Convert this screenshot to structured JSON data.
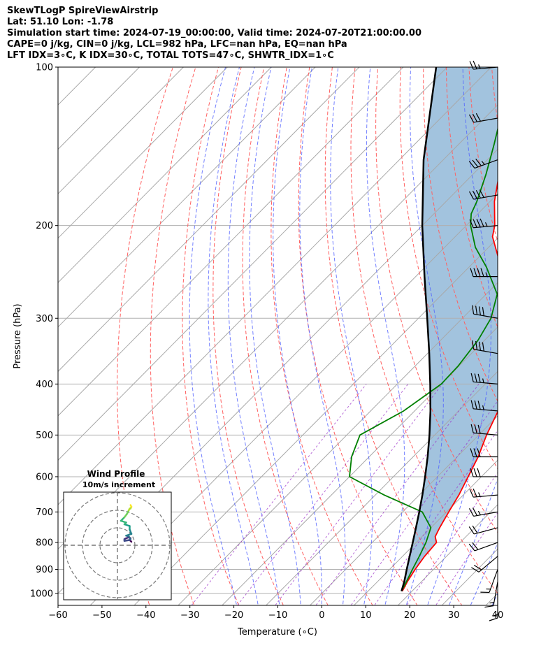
{
  "title_lines": [
    "SkewTLogP SpireViewAirstrip",
    "Lat: 51.10   Lon: -1.78",
    "Simulation start time: 2024-07-19_00:00:00, Valid time: 2024-07-20T21:00:00.00",
    "CAPE=0 j/kg, CIN=0 j/kg, LCL=982 hPa, LFC=nan hPa, EQ=nan hPa",
    "LFT IDX=3∘C, K IDX=30∘C, TOTAL TOTS=47∘C, SHWTR_IDX=1∘C"
  ],
  "chart_data": {
    "type": "line",
    "subtype": "skew-t log-p",
    "xlabel": "Temperature (∘C)",
    "ylabel": "Pressure (hPa)",
    "xlim": [
      -60,
      40
    ],
    "ylim": [
      1050,
      100
    ],
    "y_scale": "log",
    "x_ticks": [
      -60,
      -50,
      -40,
      -30,
      -20,
      -10,
      0,
      10,
      20,
      30,
      40
    ],
    "x_tick_labels": [
      "−60",
      "−50",
      "−40",
      "−30",
      "−20",
      "−10",
      "0",
      "10",
      "20",
      "30",
      "40"
    ],
    "y_ticks": [
      1000,
      900,
      800,
      700,
      600,
      500,
      400,
      300,
      200,
      100
    ],
    "y_tick_labels": [
      "1000",
      "900",
      "800",
      "700",
      "600",
      "500",
      "400",
      "300",
      "200",
      "100"
    ],
    "grid": true,
    "series": [
      {
        "role": "temperature",
        "color": "#ff0000",
        "pressure": [
          990,
          950,
          900,
          850,
          800,
          780,
          750,
          700,
          650,
          600,
          550,
          500,
          450,
          400,
          360,
          330,
          310,
          290,
          270,
          250,
          230,
          210,
          200,
          180,
          160,
          140,
          120,
          110,
          100
        ],
        "temp": [
          17.8,
          16.8,
          15.8,
          15.0,
          14.6,
          13.0,
          12.0,
          10.5,
          9.0,
          7.0,
          4.8,
          1.8,
          -1.0,
          -4.5,
          -9.0,
          -13.0,
          -16.5,
          -20.5,
          -25.0,
          -30.0,
          -35.5,
          -41.5,
          -43.5,
          -49.0,
          -54.0,
          -59.0,
          -64.0,
          -67.0,
          -70.0
        ]
      },
      {
        "role": "dewpoint",
        "color": "#008000",
        "pressure": [
          990,
          950,
          900,
          850,
          800,
          750,
          700,
          650,
          600,
          550,
          500,
          450,
          400,
          370,
          330,
          300,
          270,
          240,
          220,
          200,
          190,
          180,
          160,
          140,
          120,
          100
        ],
        "temp": [
          17.6,
          16.6,
          15.2,
          13.8,
          12.2,
          10.0,
          4.5,
          -8.0,
          -20.0,
          -24.0,
          -27.0,
          -22.5,
          -20.0,
          -20.2,
          -21.5,
          -23.5,
          -27.5,
          -36.0,
          -43.0,
          -49.0,
          -51.5,
          -53.0,
          -57.0,
          -62.0,
          -68.0,
          -75.0
        ]
      },
      {
        "role": "parcel",
        "color": "#000000",
        "pressure": [
          990,
          950,
          900,
          850,
          800,
          750,
          700,
          650,
          600,
          550,
          500,
          450,
          400,
          350,
          300,
          250,
          200,
          150,
          100
        ],
        "temp": [
          17.6,
          16.1,
          13.9,
          11.6,
          9.2,
          6.6,
          3.8,
          0.7,
          -2.8,
          -6.7,
          -11.2,
          -16.4,
          -22.5,
          -29.6,
          -38.0,
          -48.0,
          -60.0,
          -74.5,
          -92.5
        ]
      }
    ],
    "wind_barbs": {
      "pressure": [
        1000,
        950,
        900,
        850,
        800,
        750,
        700,
        650,
        600,
        550,
        500,
        450,
        400,
        350,
        300,
        250,
        200,
        175,
        150,
        125,
        100
      ],
      "speed_kt": [
        15,
        15,
        15,
        20,
        20,
        20,
        25,
        25,
        30,
        30,
        30,
        35,
        35,
        40,
        40,
        45,
        45,
        40,
        35,
        30,
        25
      ],
      "direction_deg": [
        180,
        190,
        200,
        230,
        250,
        255,
        260,
        265,
        270,
        270,
        275,
        275,
        275,
        280,
        280,
        270,
        265,
        260,
        250,
        260,
        265
      ]
    },
    "inset": {
      "title": "Wind Profile",
      "subtitle": "10m/s increment",
      "rings": [
        10,
        20,
        30
      ],
      "hodograph_u": [
        2,
        1,
        1.5,
        0.5,
        -1,
        -2,
        -2,
        1,
        1.5,
        0.5,
        -1,
        0.5,
        2,
        1,
        1,
        -2,
        -1,
        -4,
        -2,
        -0.5,
        0.5,
        1,
        1.5,
        2,
        1.5
      ],
      "hodograph_v": [
        0,
        1,
        2,
        2.5,
        2,
        1.5,
        0.5,
        1,
        1.5,
        3,
        3.5,
        4,
        4.5,
        7,
        9,
        10,
        11,
        12,
        14,
        16,
        18,
        19,
        19,
        20,
        21
      ],
      "hodograph_colors": [
        "#440154",
        "#482878",
        "#3e4a89",
        "#31688e",
        "#26828e",
        "#1f9e89",
        "#35b779",
        "#6ece58",
        "#b5de2b",
        "#fde725"
      ]
    }
  }
}
